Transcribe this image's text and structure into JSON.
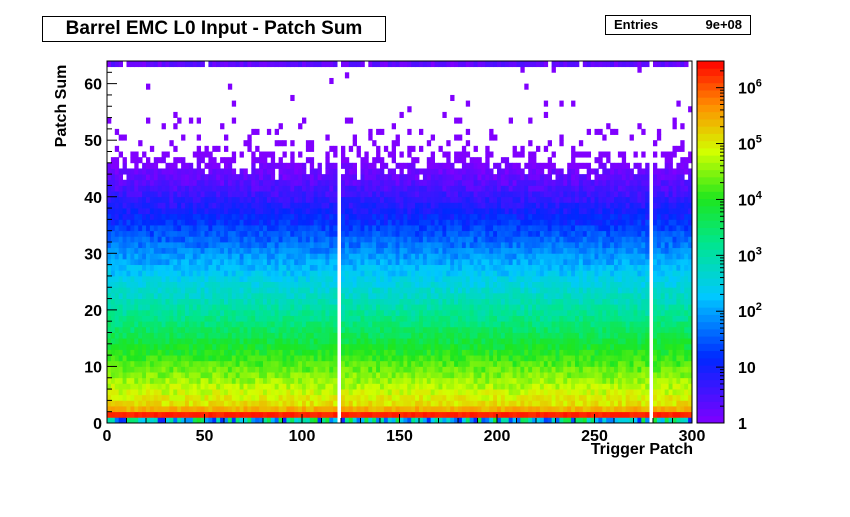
{
  "chart_data": {
    "type": "heatmap",
    "title": "Barrel EMC L0 Input - Patch Sum",
    "xlabel": "Trigger Patch",
    "ylabel": "Patch Sum",
    "xlim": [
      0,
      300
    ],
    "ylim": [
      0,
      64
    ],
    "x_ticks": [
      0,
      50,
      100,
      150,
      200,
      250,
      300
    ],
    "y_ticks": [
      0,
      10,
      20,
      30,
      40,
      50,
      60
    ],
    "z_scale": "log",
    "zlim": [
      1,
      3000000
    ],
    "z_ticks": [
      {
        "value": 1,
        "label": "1"
      },
      {
        "value": 10,
        "label": "10"
      },
      {
        "value": 100,
        "label": "10",
        "exp": "2"
      },
      {
        "value": 1000,
        "label": "10",
        "exp": "3"
      },
      {
        "value": 10000,
        "label": "10",
        "exp": "4"
      },
      {
        "value": 100000,
        "label": "10",
        "exp": "5"
      },
      {
        "value": 1000000,
        "label": "10",
        "exp": "6"
      }
    ],
    "empty_patches": [
      118,
      278,
      279
    ],
    "stats": {
      "label": "Entries",
      "value": "9e+08"
    }
  }
}
